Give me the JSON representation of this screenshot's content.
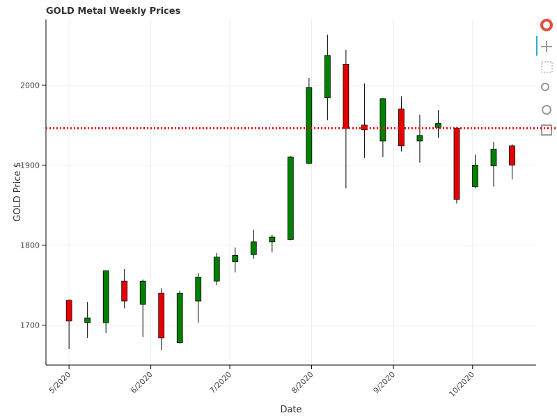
{
  "chart_data": {
    "type": "candlestick",
    "title": "GOLD Metal Weekly Prices",
    "x_label": "Date",
    "y_label": "GOLD Price $",
    "x": [
      0,
      1,
      2,
      3,
      4,
      5,
      6,
      7,
      8,
      9,
      10,
      11,
      12,
      13,
      14,
      15,
      16,
      17,
      18,
      19,
      20,
      21,
      22,
      23,
      24
    ],
    "open": [
      1731,
      1703,
      1703,
      1755,
      1726,
      1740,
      1678,
      1730,
      1755,
      1779,
      1788,
      1804,
      1807,
      1902,
      1984,
      2026,
      1950,
      1930,
      1970,
      1930,
      1947,
      1946,
      1873,
      1899,
      1924
    ],
    "high": [
      1732,
      1729,
      1768,
      1770,
      1757,
      1746,
      1743,
      1765,
      1790,
      1797,
      1819,
      1813,
      1911,
      2009,
      2063,
      2044,
      2002,
      1984,
      1986,
      1963,
      1969,
      1948,
      1913,
      1929,
      1926
    ],
    "low": [
      1670,
      1684,
      1690,
      1721,
      1685,
      1669,
      1677,
      1703,
      1750,
      1766,
      1783,
      1791,
      1806,
      1901,
      1956,
      1871,
      1909,
      1910,
      1917,
      1903,
      1934,
      1852,
      1871,
      1873,
      1882
    ],
    "close": [
      1705,
      1709,
      1768,
      1730,
      1755,
      1684,
      1740,
      1760,
      1785,
      1787,
      1804,
      1810,
      1910,
      1997,
      2037,
      1946,
      1944,
      1983,
      1924,
      1937,
      1952,
      1857,
      1900,
      1920,
      1900
    ],
    "up_color": "#008000",
    "down_color": "#e60000",
    "hline": {
      "value": 1946,
      "color": "#ff0000"
    },
    "xlim": [
      -1.25,
      25.3
    ],
    "xticks": [
      {
        "value": 0,
        "label": "5/2020"
      },
      {
        "value": 4.43,
        "label": "6/2020"
      },
      {
        "value": 8.71,
        "label": "7/2020"
      },
      {
        "value": 13.14,
        "label": "8/2020"
      },
      {
        "value": 17.57,
        "label": "9/2020"
      },
      {
        "value": 21.86,
        "label": "10/2020"
      }
    ],
    "ylim": [
      1650,
      2082
    ],
    "yticks": [
      1700,
      1800,
      1900,
      2000
    ],
    "grid": true
  }
}
